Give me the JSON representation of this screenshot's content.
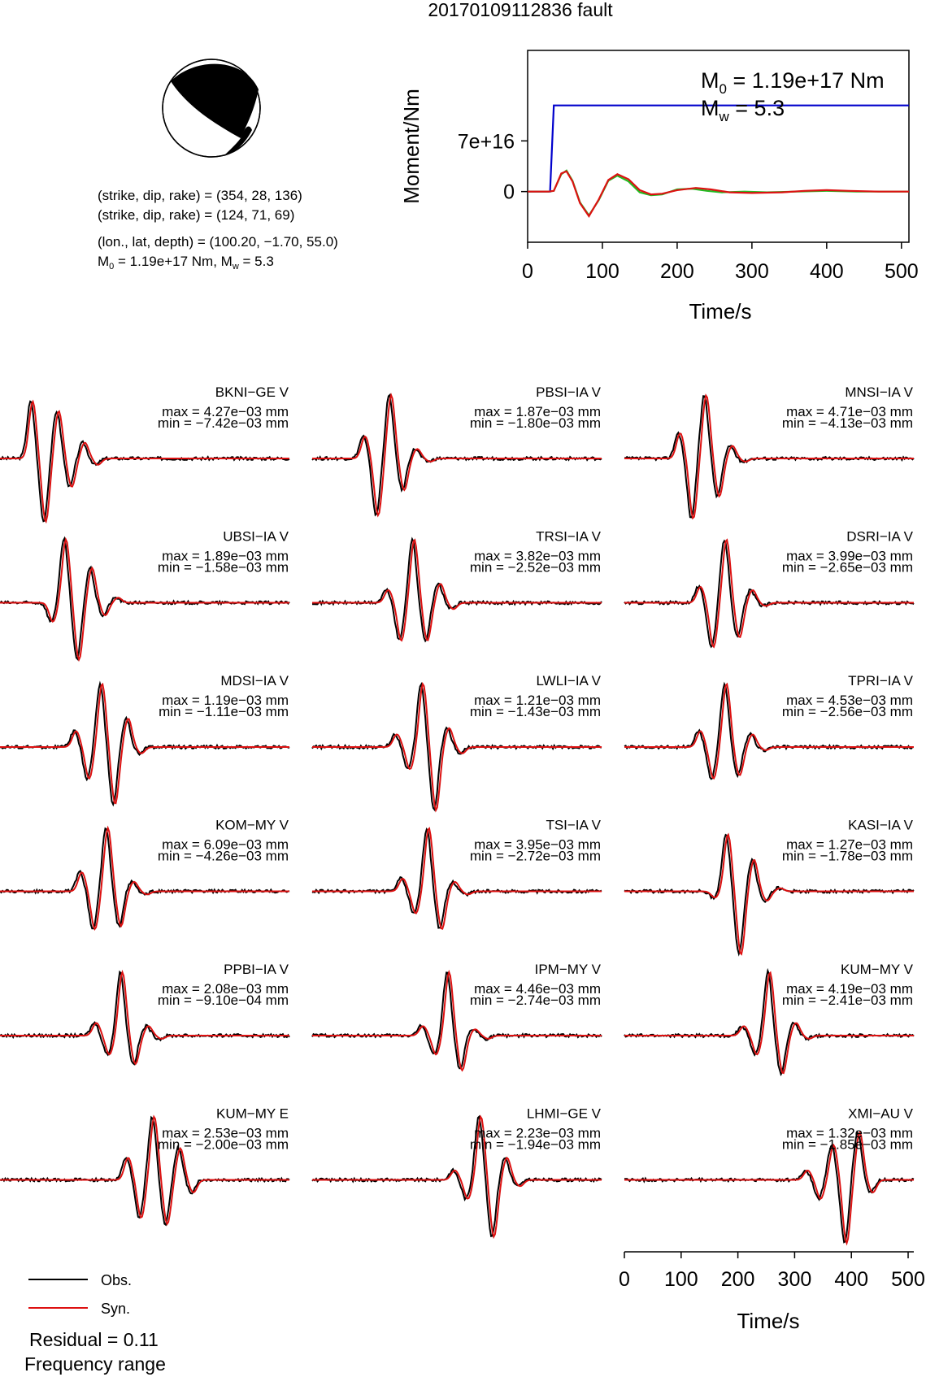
{
  "title": "20170109112836 fault",
  "mechanism": {
    "plane1": "(strike, dip, rake) = (354, 28, 136)",
    "plane2": "(strike, dip, rake) = (124, 71, 69)",
    "location": "(lon., lat, depth) = (100.20, −1.70, 55.0)",
    "m0_line_a": "M",
    "m0_line_sub": "0",
    "m0_line_b": " = 1.19e+17 Nm, M",
    "mw_line_sub": "w",
    "mw_line_c": " = 5.3"
  },
  "chart_data": [
    {
      "type": "line",
      "id": "moment-rate",
      "xlabel": "Time/s",
      "ylabel": "Moment/Nm",
      "xlim": [
        0,
        510
      ],
      "ylim": [
        -7e+16,
        1.95e+17
      ],
      "xticks": [
        0,
        100,
        200,
        300,
        400,
        500
      ],
      "xtick_labels": [
        "0",
        "100",
        "200",
        "300",
        "400",
        "500"
      ],
      "yticks": [
        0,
        7e+16
      ],
      "ytick_labels": [
        "0",
        "7e+16"
      ],
      "annotation_m0": {
        "sym": "M",
        "sub": "0",
        "text": " = 1.19e+17 Nm"
      },
      "annotation_mw": {
        "sym": "M",
        "sub": "w",
        "text": " = 5.3"
      },
      "series": [
        {
          "color": "#0000cc",
          "x": [
            0,
            30,
            35,
            510
          ],
          "y": [
            0,
            0,
            1.19e+17,
            1.19e+17
          ]
        },
        {
          "color": "#22bb22",
          "x": [
            0,
            28,
            35,
            45,
            52,
            60,
            70,
            82,
            95,
            108,
            120,
            135,
            150,
            165,
            180,
            200,
            220,
            240,
            260,
            290,
            320,
            360,
            400,
            440,
            480,
            510
          ],
          "y": [
            0,
            0,
            1000000000000000.0,
            2.4e+16,
            2.9e+16,
            1.5e+16,
            -1.5e+16,
            -3.3e+16,
            -1.2e+16,
            1.5e+16,
            2.2e+16,
            1.4e+16,
            -1000000000000000.0,
            -5000000000000000.0,
            -4000000000000000.0,
            3000000000000000.0,
            4000000000000000.0,
            1000000000000000.0,
            -1000000000000000.0,
            0,
            -1000000000000000.0,
            0,
            1000000000000000.0,
            0,
            0,
            0
          ]
        },
        {
          "color": "#dd1111",
          "x": [
            0,
            28,
            35,
            45,
            52,
            60,
            70,
            82,
            95,
            108,
            120,
            135,
            150,
            165,
            180,
            200,
            225,
            245,
            270,
            300,
            340,
            370,
            400,
            430,
            470,
            510
          ],
          "y": [
            0,
            0,
            1000000000000000.0,
            2.5e+16,
            2.8e+16,
            1.4e+16,
            -1.6e+16,
            -3.4e+16,
            -1.1e+16,
            1.6e+16,
            2.4e+16,
            1.7e+16,
            2000000000000000.0,
            -4000000000000000.0,
            -3000000000000000.0,
            2000000000000000.0,
            5000000000000000.0,
            3000000000000000.0,
            -1000000000000000.0,
            -2000000000000000.0,
            -1000000000000000.0,
            1000000000000000.0,
            2000000000000000.0,
            1000000000000000.0,
            0,
            0
          ]
        }
      ]
    },
    {
      "type": "line",
      "id": "waveforms",
      "xlabel": "Time/s",
      "xlim": [
        0,
        510
      ],
      "xticks": [
        0,
        100,
        200,
        300,
        400,
        500
      ],
      "xtick_labels": [
        "0",
        "100",
        "200",
        "300",
        "400",
        "500"
      ],
      "legend": {
        "placement": "bottom-left",
        "entries": [
          {
            "name": "Obs.",
            "color": "#000000"
          },
          {
            "name": "Syn.",
            "color": "#dd1111"
          }
        ]
      },
      "residual": "Residual = 0.11",
      "frequency_label": "Frequency range",
      "stations": [
        {
          "name": "BKNI−GE V",
          "max": "max = 4.27e−03 mm",
          "min": "min = −7.42e−03 mm",
          "center": 0.2,
          "amps": [
            0.9,
            -1.0,
            0.75,
            -0.45,
            0.25,
            -0.1
          ]
        },
        {
          "name": "PBSI−IA V",
          "max": "max = 1.87e−03 mm",
          "min": "min = −1.80e−03 mm",
          "center": 0.27,
          "amps": [
            0.35,
            -0.9,
            1.0,
            -0.5,
            0.15,
            -0.05
          ]
        },
        {
          "name": "MNSI−IA V",
          "max": "max = 4.71e−03 mm",
          "min": "min = −4.13e−03 mm",
          "center": 0.28,
          "amps": [
            0.4,
            -0.95,
            1.0,
            -0.6,
            0.2,
            -0.05
          ]
        },
        {
          "name": "UBSI−IA V",
          "max": "max = 1.89e−03 mm",
          "min": "min = −1.58e−03 mm",
          "center": 0.27,
          "amps": [
            -0.3,
            1.0,
            -0.9,
            0.55,
            -0.2,
            0.08
          ]
        },
        {
          "name": "TRSI−IA V",
          "max": "max = 3.82e−03 mm",
          "min": "min = −2.52e−03 mm",
          "center": 0.35,
          "amps": [
            0.2,
            -0.6,
            1.0,
            -0.6,
            0.3,
            -0.1
          ]
        },
        {
          "name": "DSRI−IA V",
          "max": "max = 3.99e−03 mm",
          "min": "min = −2.65e−03 mm",
          "center": 0.35,
          "amps": [
            0.25,
            -0.7,
            1.0,
            -0.55,
            0.2,
            -0.05
          ]
        },
        {
          "name": "MDSI−IA V",
          "max": "max = 1.19e−03 mm",
          "min": "min = −1.11e−03 mm",
          "center": 0.35,
          "amps": [
            0.25,
            -0.5,
            1.0,
            -0.9,
            0.45,
            -0.1
          ]
        },
        {
          "name": "LWLI−IA V",
          "max": "max = 1.21e−03 mm",
          "min": "min = −1.43e−03 mm",
          "center": 0.38,
          "amps": [
            0.2,
            -0.35,
            1.0,
            -1.0,
            0.3,
            -0.1
          ]
        },
        {
          "name": "TPRI−IA V",
          "max": "max = 4.53e−03 mm",
          "min": "min = −2.56e−03 mm",
          "center": 0.35,
          "amps": [
            0.25,
            -0.5,
            1.0,
            -0.45,
            0.2,
            -0.05
          ]
        },
        {
          "name": "KOM−MY V",
          "max": "max = 6.09e−03 mm",
          "min": "min = −4.26e−03 mm",
          "center": 0.37,
          "amps": [
            0.3,
            -0.6,
            1.0,
            -0.55,
            0.15,
            -0.05
          ]
        },
        {
          "name": "TSI−IA V",
          "max": "max = 3.95e−03 mm",
          "min": "min = −2.72e−03 mm",
          "center": 0.4,
          "amps": [
            0.2,
            -0.35,
            1.0,
            -0.6,
            0.15,
            -0.05
          ]
        },
        {
          "name": "KASI−IA V",
          "max": "max = 1.27e−03 mm",
          "min": "min = −1.78e−03 mm",
          "center": 0.4,
          "amps": [
            -0.1,
            0.9,
            -1.0,
            0.5,
            -0.15,
            0.05
          ]
        },
        {
          "name": "PPBI−IA V",
          "max": "max = 2.08e−03 mm",
          "min": "min = −9.10e−04 mm",
          "center": 0.42,
          "amps": [
            0.2,
            -0.3,
            1.0,
            -0.45,
            0.15,
            -0.05
          ]
        },
        {
          "name": "IPM−MY V",
          "max": "max = 4.46e−03 mm",
          "min": "min = −2.74e−03 mm",
          "center": 0.47,
          "amps": [
            0.15,
            -0.3,
            1.0,
            -0.55,
            0.1,
            -0.05
          ]
        },
        {
          "name": "KUM−MY V",
          "max": "max = 4.19e−03 mm",
          "min": "min = −2.41e−03 mm",
          "center": 0.5,
          "amps": [
            0.15,
            -0.3,
            1.0,
            -0.6,
            0.2,
            -0.05
          ]
        },
        {
          "name": "KUM−MY E",
          "max": "max = 2.53e−03 mm",
          "min": "min = −2.00e−03 mm",
          "center": 0.53,
          "amps": [
            0.35,
            -0.6,
            1.0,
            -0.7,
            0.5,
            -0.2
          ]
        },
        {
          "name": "LHMI−GE V",
          "max": "max = 2.23e−03 mm",
          "min": "min = −1.94e−03 mm",
          "center": 0.58,
          "amps": [
            0.15,
            -0.3,
            1.0,
            -0.9,
            0.35,
            -0.1
          ]
        },
        {
          "name": "XMI−AU V",
          "max": "max = 1.32e−03 mm",
          "min": "min = −1.85e−03 mm",
          "center": 0.72,
          "amps": [
            0.15,
            -0.3,
            0.55,
            -1.0,
            0.75,
            -0.2
          ]
        }
      ]
    }
  ]
}
